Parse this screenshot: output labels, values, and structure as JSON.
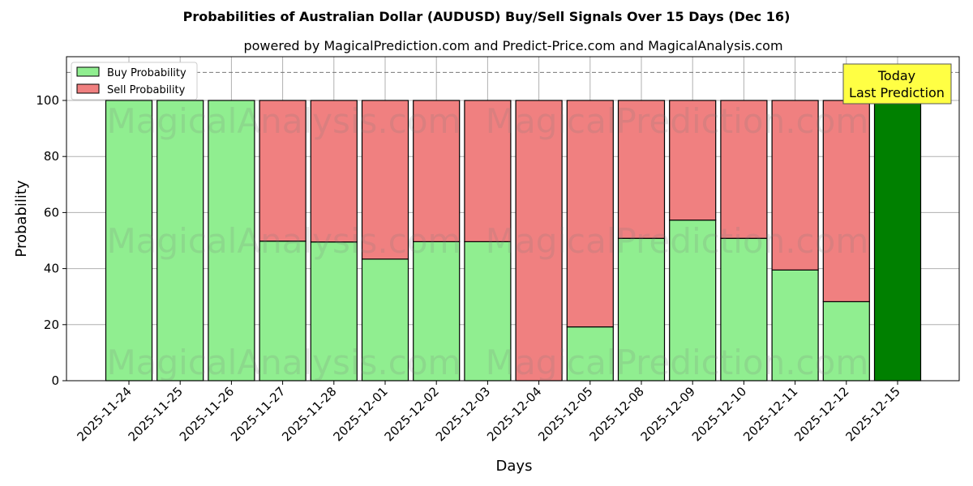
{
  "chart_data": {
    "type": "bar",
    "stacked": true,
    "title": "Probabilities of Australian Dollar (AUDUSD) Buy/Sell Signals Over 15 Days (Dec 16)",
    "subtitle": "powered by MagicalPrediction.com and Predict-Price.com and MagicalAnalysis.com",
    "xlabel": "Days",
    "ylabel": "Probability",
    "ylim": [
      0,
      115
    ],
    "yticks": [
      0,
      20,
      40,
      60,
      80,
      100
    ],
    "grid": true,
    "legend_position": "top-left",
    "categories": [
      "2025-11-24",
      "2025-11-25",
      "2025-11-26",
      "2025-11-27",
      "2025-11-28",
      "2025-12-01",
      "2025-12-02",
      "2025-12-03",
      "2025-12-04",
      "2025-12-05",
      "2025-12-08",
      "2025-12-09",
      "2025-12-10",
      "2025-12-11",
      "2025-12-12",
      "2025-12-15"
    ],
    "series": [
      {
        "name": "Buy Probability",
        "color": "#90ee90",
        "values": [
          100,
          100,
          100,
          49.8,
          49.5,
          43.4,
          49.6,
          49.6,
          0,
          19.2,
          50.8,
          57.3,
          50.8,
          39.5,
          28.2,
          100
        ]
      },
      {
        "name": "Sell Probability",
        "color": "#f08080",
        "values": [
          0,
          0,
          0,
          50.2,
          50.5,
          56.6,
          50.4,
          50.4,
          100,
          80.8,
          49.2,
          42.7,
          49.2,
          60.5,
          71.8,
          0
        ]
      }
    ],
    "highlight_color": "#008000",
    "reference_line": 110,
    "annotation": {
      "line1": "Today",
      "line2": "Last Prediction"
    },
    "watermarks": [
      "MagicalAnalysis.com",
      "MagicalPrediction.com"
    ]
  }
}
